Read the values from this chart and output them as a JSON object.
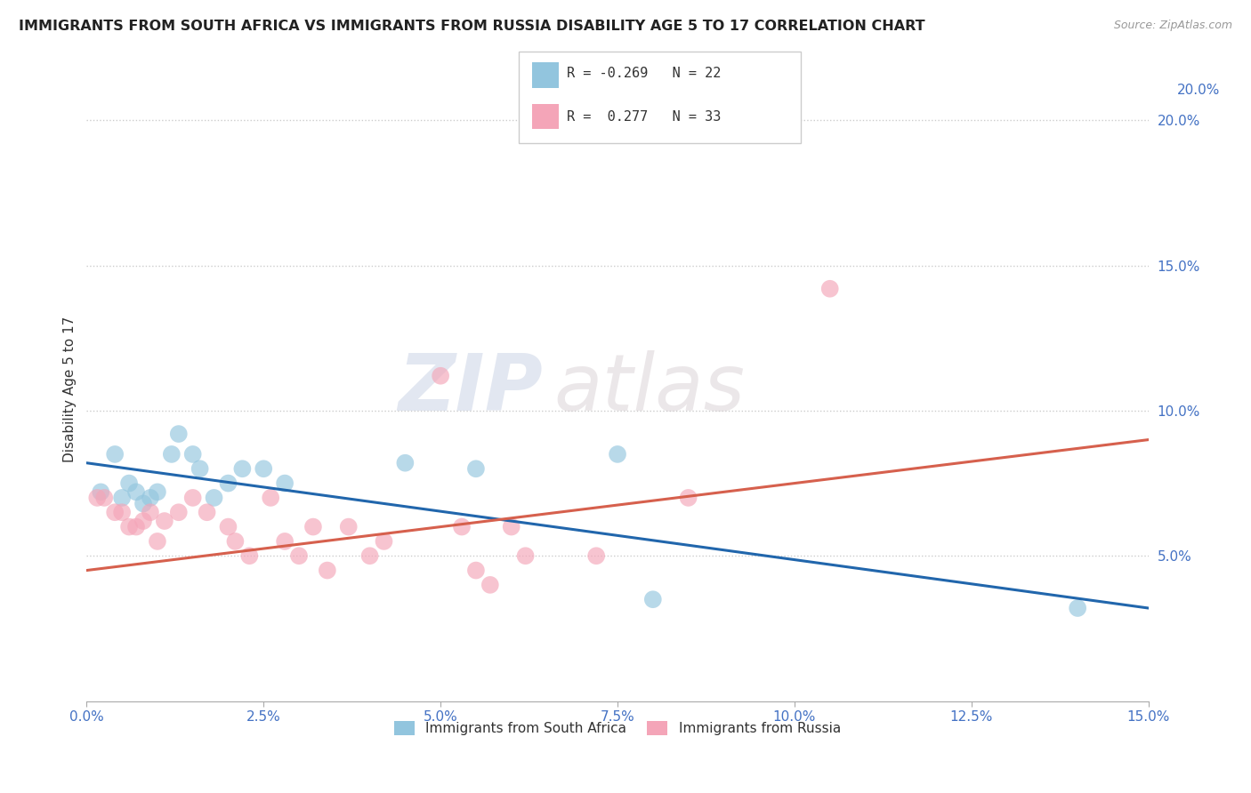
{
  "title": "IMMIGRANTS FROM SOUTH AFRICA VS IMMIGRANTS FROM RUSSIA DISABILITY AGE 5 TO 17 CORRELATION CHART",
  "source": "Source: ZipAtlas.com",
  "ylabel_label": "Disability Age 5 to 17",
  "legend_series1_label": "Immigrants from South Africa",
  "legend_series1_r": "-0.269",
  "legend_series1_n": "22",
  "legend_series2_label": "Immigrants from Russia",
  "legend_series2_r": "0.277",
  "legend_series2_n": "33",
  "color_blue": "#92c5de",
  "color_pink": "#f4a5b8",
  "color_blue_line": "#2166ac",
  "color_pink_line": "#d6604d",
  "watermark_zip": "ZIP",
  "watermark_atlas": "atlas",
  "blue_scatter_x": [
    0.2,
    0.4,
    0.5,
    0.6,
    0.7,
    0.8,
    0.9,
    1.0,
    1.2,
    1.3,
    1.5,
    1.6,
    1.8,
    2.0,
    2.2,
    2.5,
    2.8,
    4.5,
    5.5,
    7.5,
    8.0,
    14.0
  ],
  "blue_scatter_y": [
    7.2,
    8.5,
    7.0,
    7.5,
    7.2,
    6.8,
    7.0,
    7.2,
    8.5,
    9.2,
    8.5,
    8.0,
    7.0,
    7.5,
    8.0,
    8.0,
    7.5,
    8.2,
    8.0,
    8.5,
    3.5,
    3.2
  ],
  "pink_scatter_x": [
    0.15,
    0.25,
    0.4,
    0.5,
    0.6,
    0.7,
    0.8,
    0.9,
    1.0,
    1.1,
    1.3,
    1.5,
    1.7,
    2.0,
    2.1,
    2.3,
    2.6,
    2.8,
    3.0,
    3.2,
    3.4,
    3.7,
    4.0,
    4.2,
    5.0,
    5.3,
    5.5,
    5.7,
    6.0,
    6.2,
    7.2,
    8.5,
    10.5
  ],
  "pink_scatter_y": [
    7.0,
    7.0,
    6.5,
    6.5,
    6.0,
    6.0,
    6.2,
    6.5,
    5.5,
    6.2,
    6.5,
    7.0,
    6.5,
    6.0,
    5.5,
    5.0,
    7.0,
    5.5,
    5.0,
    6.0,
    4.5,
    6.0,
    5.0,
    5.5,
    11.2,
    6.0,
    4.5,
    4.0,
    6.0,
    5.0,
    5.0,
    7.0,
    14.2
  ],
  "xlim": [
    0.0,
    15.0
  ],
  "ylim": [
    0.0,
    21.5
  ],
  "xticks": [
    0.0,
    2.5,
    5.0,
    7.5,
    10.0,
    12.5,
    15.0
  ],
  "yticks_right": [
    5.0,
    10.0,
    15.0,
    20.0
  ],
  "ytick_top_label": "20.0%",
  "blue_trend_start": 8.2,
  "blue_trend_end": 3.2,
  "pink_trend_start": 4.5,
  "pink_trend_end": 9.0
}
